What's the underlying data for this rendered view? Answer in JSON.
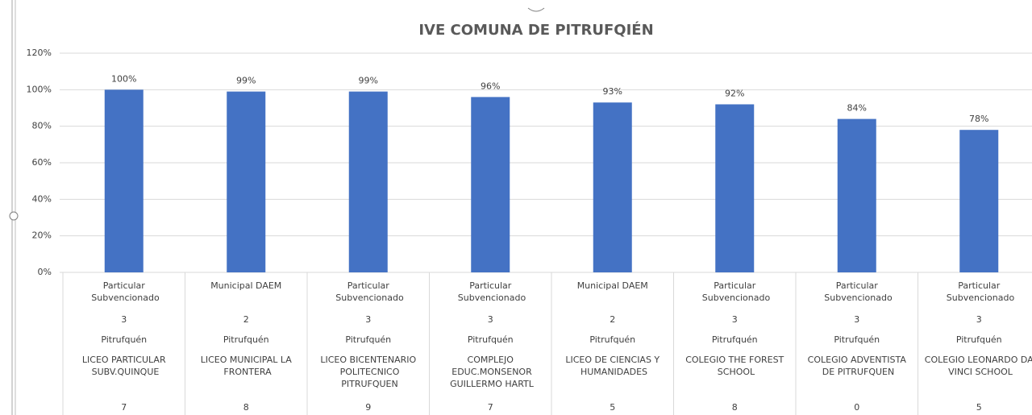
{
  "chart_data": {
    "type": "bar",
    "title": "IVE COMUNA DE PITRUFQIÉN",
    "categories": [
      [
        "Particular Subvencionado",
        "3",
        "Pitrufquén",
        "LICEO PARTICULAR SUBV.QUINQUE",
        "7"
      ],
      [
        "Municipal DAEM",
        "2",
        "Pitrufquén",
        "LICEO MUNICIPAL LA FRONTERA",
        "8"
      ],
      [
        "Particular Subvencionado",
        "3",
        "Pitrufquén",
        "LICEO BICENTENARIO POLITECNICO PITRUFQUEN",
        "9"
      ],
      [
        "Particular Subvencionado",
        "3",
        "Pitrufquén",
        "COMPLEJO EDUC.MONSENOR GUILLERMO HARTL",
        "7"
      ],
      [
        "Municipal DAEM",
        "2",
        "Pitrufquén",
        "LICEO DE CIENCIAS Y HUMANIDADES",
        "5"
      ],
      [
        "Particular Subvencionado",
        "3",
        "Pitrufquén",
        "COLEGIO THE FOREST SCHOOL",
        "8"
      ],
      [
        "Particular Subvencionado",
        "3",
        "Pitrufquén",
        "COLEGIO ADVENTISTA DE PITRUFQUEN",
        "0"
      ],
      [
        "Particular Subvencionado",
        "3",
        "Pitrufquén",
        "COLEGIO LEONARDO DA VINCI SCHOOL",
        "5"
      ]
    ],
    "values": [
      100,
      99,
      99,
      96,
      93,
      92,
      84,
      78
    ],
    "value_labels": [
      "100%",
      "99%",
      "99%",
      "96%",
      "93%",
      "92%",
      "84%",
      "78%"
    ],
    "color": "#4472c4",
    "ylim": [
      0,
      120
    ],
    "yticks": [
      {
        "value": 0,
        "label": "0%"
      },
      {
        "value": 20,
        "label": "20%"
      },
      {
        "value": 40,
        "label": "40%"
      },
      {
        "value": 60,
        "label": "60%"
      },
      {
        "value": 80,
        "label": "80%"
      },
      {
        "value": 100,
        "label": "100%"
      },
      {
        "value": 120,
        "label": "120%"
      }
    ],
    "grid": true
  }
}
